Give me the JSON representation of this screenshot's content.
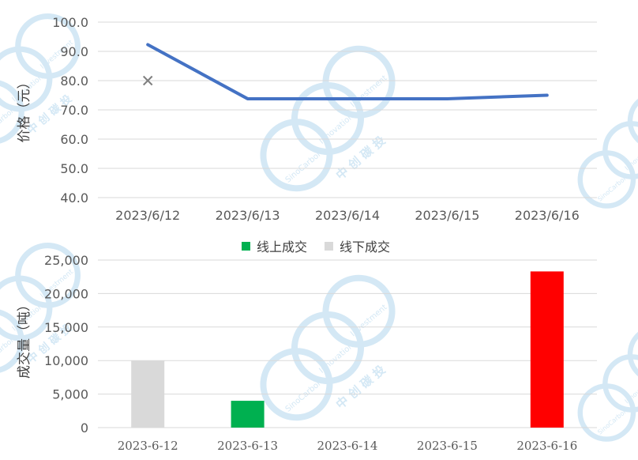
{
  "chart_data": [
    {
      "type": "line",
      "x": [
        "2023/6/12",
        "2023/6/13",
        "2023/6/14",
        "2023/6/15",
        "2023/6/16"
      ],
      "ylabel": "价格（元）",
      "ylim": [
        40,
        100
      ],
      "yticks": [
        "100.0",
        "90.0",
        "80.0",
        "70.0",
        "60.0",
        "50.0",
        "40.0"
      ],
      "grid": true,
      "series": [
        {
          "values": [
            92.3,
            73.8,
            73.8,
            73.8,
            75.0
          ],
          "color": "#4472c4"
        }
      ],
      "markers": [
        {
          "x": "2023/6/12",
          "y": 80.0,
          "symbol": "x",
          "color": "#7f7f7f"
        }
      ]
    },
    {
      "type": "bar",
      "categories": [
        "2023-6-12",
        "2023-6-13",
        "2023-6-14",
        "2023-6-15",
        "2023-6-16"
      ],
      "ylabel": "成交量（吨）",
      "ylim": [
        0,
        25000
      ],
      "yticks": [
        "25,000",
        "20,000",
        "15,000",
        "10,000",
        "5,000",
        "0"
      ],
      "grid": true,
      "legend_position": "top",
      "legend": [
        {
          "name": "线上成交",
          "color": "#00b050"
        },
        {
          "name": "线下成交",
          "color": "#d9d9d9"
        }
      ],
      "bars": [
        {
          "category": "2023-6-12",
          "value": 10000,
          "color": "#d9d9d9"
        },
        {
          "category": "2023-6-13",
          "value": 4000,
          "color": "#00b050"
        },
        {
          "category": "2023-6-14",
          "value": 0,
          "color": "#00b050"
        },
        {
          "category": "2023-6-15",
          "value": 0,
          "color": "#00b050"
        },
        {
          "category": "2023-6-16",
          "value": 23300,
          "color": "#ff0000"
        }
      ]
    }
  ],
  "watermark": {
    "brand_text": "SinoCarbon",
    "brand_text_2": "Innovation",
    "brand_text_3": "Investment",
    "brand_cn": "中 创 碳 投",
    "color": "#d4e8f5"
  }
}
